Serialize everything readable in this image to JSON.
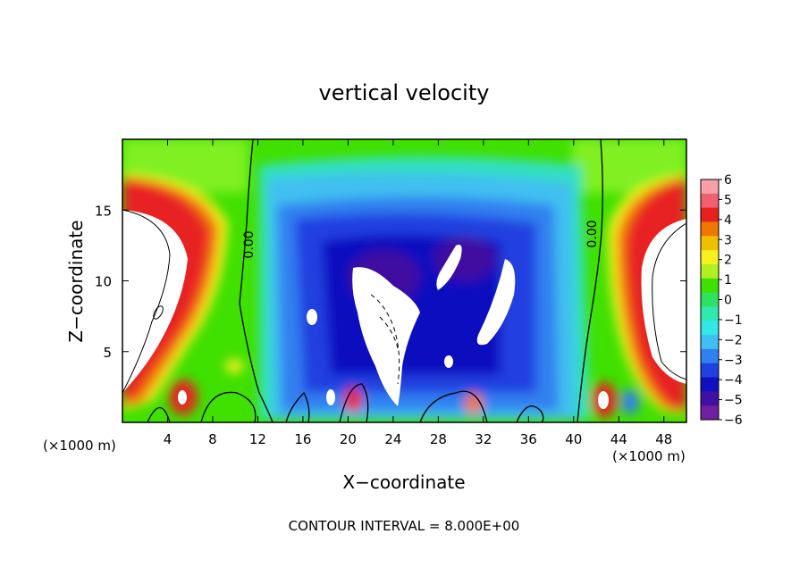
{
  "chart_data": {
    "type": "heatmap",
    "title": "vertical velocity",
    "xlabel": "X−coordinate",
    "ylabel": "Z−coordinate",
    "x_unit": "(×1000 m)",
    "x_unit_right": "(×1000 m)",
    "xlim": [
      0,
      50
    ],
    "ylim": [
      0,
      20
    ],
    "x_ticks": [
      "4",
      "8",
      "12",
      "16",
      "20",
      "24",
      "28",
      "32",
      "36",
      "40",
      "44",
      "48"
    ],
    "y_ticks": [
      "5",
      "10",
      "15"
    ],
    "colorbar": {
      "ticks": [
        "6",
        "5",
        "4",
        "3",
        "2",
        "1",
        "0",
        "−1",
        "−2",
        "−3",
        "−4",
        "−5",
        "−6"
      ],
      "range": [
        -6,
        6
      ],
      "colors": [
        "#f8a0a8",
        "#f06070",
        "#e82020",
        "#f07800",
        "#f0c000",
        "#f8f020",
        "#b0f020",
        "#40e000",
        "#30e060",
        "#30e8b0",
        "#30e8e8",
        "#40c0f0",
        "#3080f0",
        "#2040e0",
        "#1010c0",
        "#4010a0",
        "#7020a0"
      ]
    },
    "contour_labels": [
      "0.00",
      "0.00"
    ],
    "note": "CONTOUR INTERVAL = 8.000E+00"
  }
}
